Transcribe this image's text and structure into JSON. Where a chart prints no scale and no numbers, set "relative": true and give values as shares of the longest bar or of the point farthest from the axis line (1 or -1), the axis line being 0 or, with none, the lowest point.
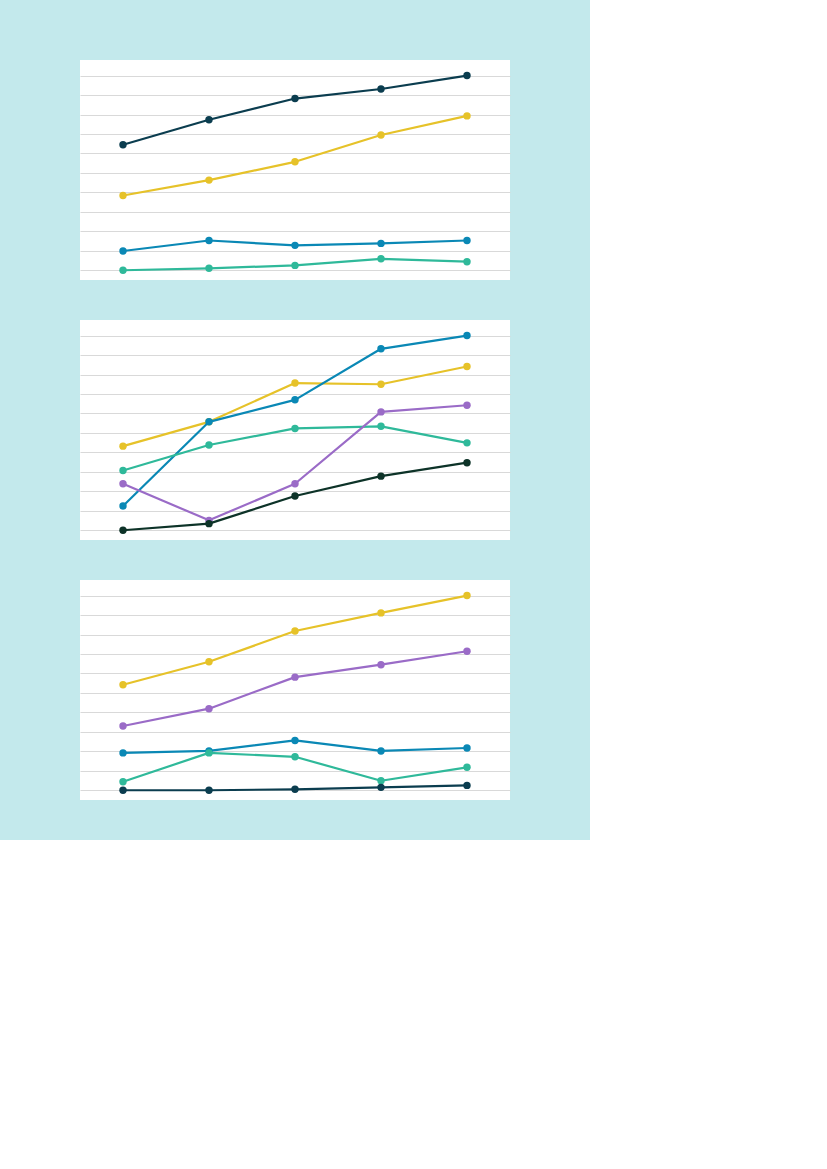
{
  "chart_data": [
    {
      "type": "line",
      "categories": [
        null,
        null,
        null,
        null,
        null
      ],
      "relative": true,
      "grid": "y",
      "marker": "circle",
      "line_style": "solid",
      "series": [
        {
          "color": "#0b3d4f",
          "values": [
            0.645,
            0.773,
            0.882,
            0.931,
            1
          ]
        },
        {
          "color": "#e6c229",
          "values": [
            0.384,
            0.463,
            0.557,
            0.695,
            0.793
          ]
        },
        {
          "color": "#0a88b5",
          "values": [
            0.099,
            0.153,
            0.128,
            0.138,
            0.153
          ]
        },
        {
          "color": "#2fb99a",
          "values": [
            0,
            0.01,
            0.025,
            0.059,
            0.044
          ]
        }
      ]
    },
    {
      "type": "line",
      "categories": [
        null,
        null,
        null,
        null,
        null
      ],
      "relative": true,
      "grid": "y",
      "marker": "circle",
      "line_style": "solid",
      "series": [
        {
          "color": "#e6c229",
          "values": [
            0.432,
            0.557,
            0.756,
            0.75,
            0.841
          ]
        },
        {
          "color": "#0a88b5",
          "values": [
            0.125,
            0.557,
            0.67,
            0.932,
            1
          ]
        },
        {
          "color": "#2fb99a",
          "values": [
            0.307,
            0.438,
            0.523,
            0.534,
            0.449
          ]
        },
        {
          "color": "#9a6bc7",
          "values": [
            0.239,
            0.051,
            0.239,
            0.608,
            0.642
          ]
        },
        {
          "color": "#0d3328",
          "values": [
            0,
            0.034,
            0.176,
            0.278,
            0.347
          ]
        }
      ]
    },
    {
      "type": "line",
      "categories": [
        null,
        null,
        null,
        null,
        null
      ],
      "relative": true,
      "grid": "y",
      "marker": "circle",
      "line_style": "solid",
      "series": [
        {
          "color": "#e6c229",
          "values": [
            0.542,
            0.66,
            0.818,
            0.911,
            1
          ]
        },
        {
          "color": "#9a6bc7",
          "values": [
            0.33,
            0.419,
            0.581,
            0.645,
            0.714
          ]
        },
        {
          "color": "#0a88b5",
          "values": [
            0.192,
            0.202,
            0.256,
            0.202,
            0.217
          ]
        },
        {
          "color": "#2fb99a",
          "values": [
            0.044,
            0.192,
            0.172,
            0.049,
            0.118
          ]
        },
        {
          "color": "#0b3d4f",
          "values": [
            0,
            0,
            0.005,
            0.015,
            0.025
          ]
        }
      ]
    }
  ]
}
